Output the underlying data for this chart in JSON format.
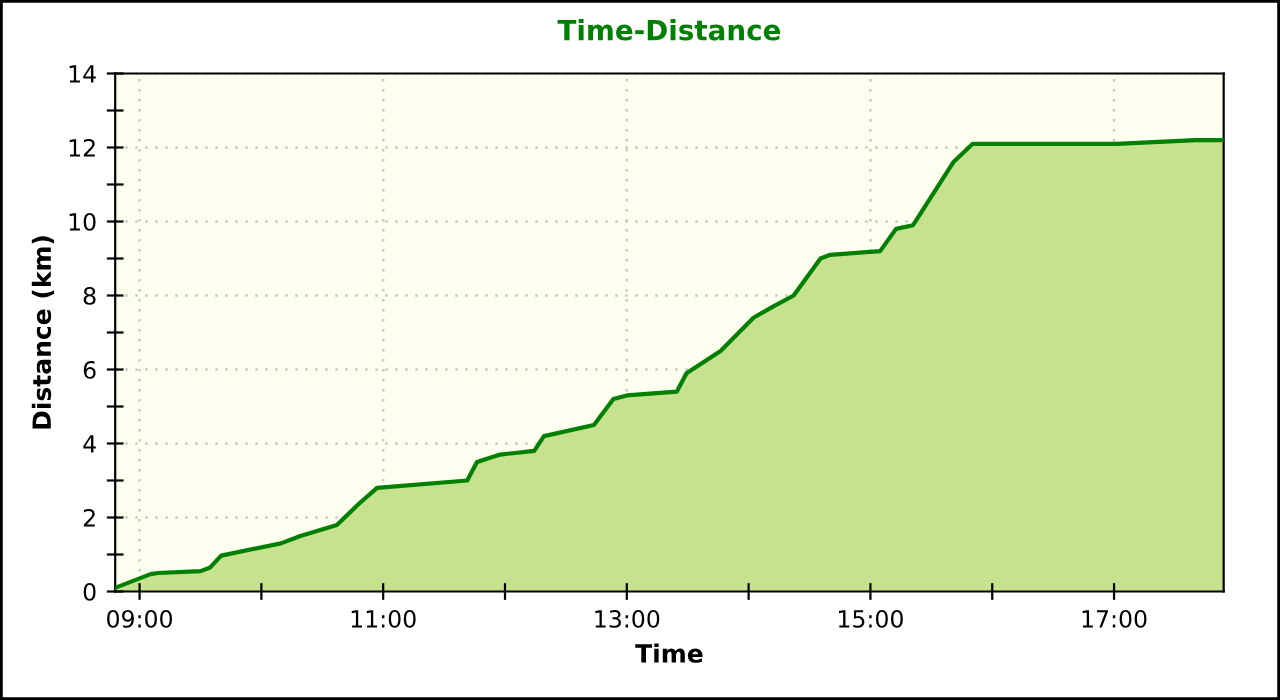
{
  "chart_data": {
    "type": "area",
    "title": "Time-Distance",
    "xlabel": "Time",
    "ylabel": "Distance (km)",
    "x": [
      8.8,
      9.09,
      9.15,
      9.5,
      9.58,
      9.67,
      10.16,
      10.32,
      10.62,
      10.81,
      10.95,
      11.69,
      11.77,
      11.96,
      12.24,
      12.32,
      12.73,
      12.89,
      13.0,
      13.41,
      13.49,
      13.77,
      14.04,
      14.2,
      14.37,
      14.59,
      14.67,
      15.08,
      15.21,
      15.35,
      15.68,
      15.84,
      17.02,
      17.67,
      17.9
    ],
    "series": [
      {
        "color": "#008000",
        "values": [
          0.1,
          0.47,
          0.5,
          0.55,
          0.65,
          0.97,
          1.3,
          1.5,
          1.8,
          2.4,
          2.8,
          3.0,
          3.5,
          3.7,
          3.8,
          4.2,
          4.5,
          5.2,
          5.3,
          5.4,
          5.9,
          6.5,
          7.4,
          7.7,
          8.0,
          9.0,
          9.1,
          9.2,
          9.8,
          9.9,
          11.6,
          12.1,
          12.1,
          12.2,
          12.2
        ]
      }
    ],
    "xlim": [
      8.8,
      17.9
    ],
    "xticks": [
      {
        "value": 9,
        "label": "09:00"
      },
      {
        "value": 10,
        "label": null
      },
      {
        "value": 11,
        "label": "11:00"
      },
      {
        "value": 12,
        "label": null
      },
      {
        "value": 13,
        "label": "13:00"
      },
      {
        "value": 14,
        "label": null
      },
      {
        "value": 15,
        "label": "15:00"
      },
      {
        "value": 16,
        "label": null
      },
      {
        "value": 17,
        "label": "17:00"
      }
    ],
    "ylim": [
      0,
      14
    ],
    "yticks": [
      0,
      {
        "value": 1,
        "label": null
      },
      2,
      {
        "value": 3,
        "label": null
      },
      4,
      {
        "value": 5,
        "label": null
      },
      6,
      {
        "value": 7,
        "label": null
      },
      8,
      {
        "value": 9,
        "label": null
      },
      10,
      {
        "value": 11,
        "label": null
      },
      12,
      {
        "value": 13,
        "label": null
      },
      14
    ],
    "grid": true
  }
}
